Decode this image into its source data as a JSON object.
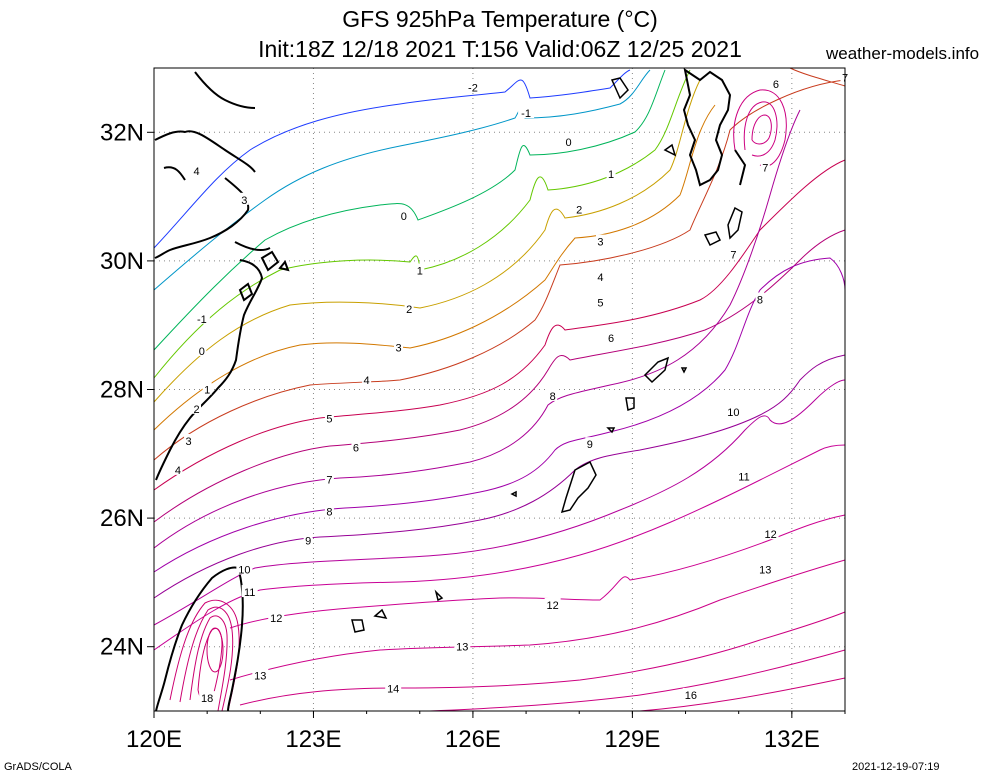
{
  "header": {
    "title_line1": "GFS 925hPa Temperature (°C)",
    "title_line2": "Init:18Z 12/18 2021 T:156 Valid:06Z 12/25 2021",
    "site": "weather-models.info"
  },
  "footer": {
    "software": "GrADS/COLA",
    "timestamp": "2021-12-19-07:19"
  },
  "map": {
    "projection": "lat-lon",
    "lon_range": [
      120,
      133
    ],
    "lat_range": [
      23,
      33
    ],
    "gridlines": "dotted",
    "lon_ticks": [
      120,
      123,
      126,
      129,
      132
    ],
    "lon_tick_labels": [
      "120E",
      "123E",
      "126E",
      "129E",
      "132E"
    ],
    "lat_ticks": [
      24,
      26,
      28,
      30,
      32
    ],
    "lat_tick_labels": [
      "24N",
      "26N",
      "28N",
      "30N",
      "32N"
    ],
    "contour_interval": 1,
    "contour_colors": {
      "-2": "#1e3cff",
      "-1": "#0096c8",
      "0": "#00b45a",
      "1": "#64c800",
      "2": "#c8a000",
      "3": "#d27800",
      "4": "#c83c1e",
      "5": "#c80050",
      "6": "#b40078",
      "7": "#aa0096",
      "8": "#a000aa",
      "9": "#960096",
      "10": "#b4009a",
      "11": "#c80096",
      "12": "#cc0090",
      "13": "#cc0088",
      "14": "#cc0080",
      "16": "#cc0078",
      "18": "#cc0070"
    },
    "contour_labels": [
      {
        "text": "-2",
        "lon": 126.0,
        "lat": 32.7
      },
      {
        "text": "-1",
        "lon": 127.0,
        "lat": 32.3
      },
      {
        "text": "0",
        "lon": 127.8,
        "lat": 31.85
      },
      {
        "text": "1",
        "lon": 128.6,
        "lat": 31.35
      },
      {
        "text": "2",
        "lon": 128.0,
        "lat": 30.8
      },
      {
        "text": "3",
        "lon": 128.4,
        "lat": 30.3
      },
      {
        "text": "4",
        "lon": 128.4,
        "lat": 29.75
      },
      {
        "text": "5",
        "lon": 128.4,
        "lat": 29.35
      },
      {
        "text": "6",
        "lon": 128.6,
        "lat": 28.8
      },
      {
        "text": "7",
        "lon": 130.9,
        "lat": 30.1
      },
      {
        "text": "8",
        "lon": 131.4,
        "lat": 29.4
      },
      {
        "text": "8",
        "lon": 127.5,
        "lat": 27.9
      },
      {
        "text": "9",
        "lon": 128.2,
        "lat": 27.15
      },
      {
        "text": "10",
        "lon": 130.9,
        "lat": 27.65
      },
      {
        "text": "11",
        "lon": 131.1,
        "lat": 26.65
      },
      {
        "text": "12",
        "lon": 131.6,
        "lat": 25.75
      },
      {
        "text": "13",
        "lon": 131.5,
        "lat": 25.2
      },
      {
        "text": "12",
        "lon": 127.5,
        "lat": 24.65
      },
      {
        "text": "13",
        "lon": 125.8,
        "lat": 24.0
      },
      {
        "text": "14",
        "lon": 124.5,
        "lat": 23.35
      },
      {
        "text": "16",
        "lon": 130.1,
        "lat": 23.25
      },
      {
        "text": "4",
        "lon": 120.8,
        "lat": 31.4
      },
      {
        "text": "3",
        "lon": 121.7,
        "lat": 30.95
      },
      {
        "text": "0",
        "lon": 124.7,
        "lat": 30.7
      },
      {
        "text": "1",
        "lon": 125.0,
        "lat": 29.85
      },
      {
        "text": "2",
        "lon": 124.8,
        "lat": 29.25
      },
      {
        "text": "3",
        "lon": 124.6,
        "lat": 28.65
      },
      {
        "text": "4",
        "lon": 124.0,
        "lat": 28.15
      },
      {
        "text": "5",
        "lon": 123.3,
        "lat": 27.55
      },
      {
        "text": "6",
        "lon": 123.8,
        "lat": 27.1
      },
      {
        "text": "7",
        "lon": 123.3,
        "lat": 26.6
      },
      {
        "text": "8",
        "lon": 123.3,
        "lat": 26.1
      },
      {
        "text": "9",
        "lon": 122.9,
        "lat": 25.65
      },
      {
        "text": "-1",
        "lon": 120.9,
        "lat": 29.1
      },
      {
        "text": "0",
        "lon": 120.9,
        "lat": 28.6
      },
      {
        "text": "1",
        "lon": 121.0,
        "lat": 28.0
      },
      {
        "text": "2",
        "lon": 120.8,
        "lat": 27.7
      },
      {
        "text": "3",
        "lon": 120.65,
        "lat": 27.2
      },
      {
        "text": "4",
        "lon": 120.45,
        "lat": 26.75
      },
      {
        "text": "10",
        "lon": 121.7,
        "lat": 25.2
      },
      {
        "text": "11",
        "lon": 121.8,
        "lat": 24.85
      },
      {
        "text": "12",
        "lon": 122.3,
        "lat": 24.45
      },
      {
        "text": "13",
        "lon": 122.0,
        "lat": 23.55
      },
      {
        "text": "18",
        "lon": 121.0,
        "lat": 23.2
      },
      {
        "text": "6",
        "lon": 131.7,
        "lat": 32.75
      },
      {
        "text": "7",
        "lon": 131.5,
        "lat": 31.45
      },
      {
        "text": "7",
        "lon": 133.0,
        "lat": 32.85
      }
    ]
  }
}
